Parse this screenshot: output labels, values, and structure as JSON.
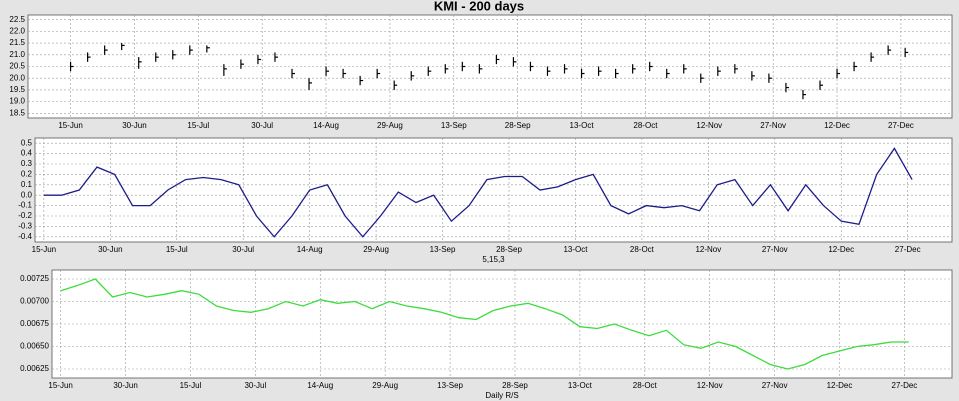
{
  "title": "KMI - 200 days",
  "chart_data": [
    {
      "type": "ohlc",
      "x": [
        0,
        4,
        8,
        12,
        16,
        20,
        24,
        28,
        32,
        36,
        40,
        44,
        48,
        52,
        56,
        60,
        64,
        68,
        72,
        76,
        80,
        84,
        88,
        92,
        96,
        100,
        104,
        108,
        112,
        116,
        120,
        124,
        128,
        132,
        136,
        140,
        144,
        148,
        152,
        156,
        160,
        164,
        168,
        172,
        176,
        180,
        184,
        188,
        192,
        196
      ],
      "high": [
        20.7,
        21.1,
        21.4,
        21.5,
        20.9,
        21.1,
        21.2,
        21.4,
        21.4,
        20.6,
        20.8,
        21.0,
        21.1,
        20.4,
        20.0,
        20.5,
        20.4,
        20.1,
        20.4,
        19.9,
        20.3,
        20.5,
        20.6,
        20.7,
        20.6,
        21.0,
        20.9,
        20.7,
        20.5,
        20.6,
        20.4,
        20.5,
        20.4,
        20.6,
        20.7,
        20.4,
        20.6,
        20.2,
        20.5,
        20.6,
        20.3,
        20.2,
        19.8,
        19.5,
        19.9,
        20.4,
        20.7,
        21.1,
        21.4,
        21.3
      ],
      "low": [
        20.3,
        20.7,
        21.0,
        21.2,
        20.4,
        20.7,
        20.8,
        21.0,
        21.1,
        20.1,
        20.4,
        20.6,
        20.7,
        20.0,
        19.5,
        20.1,
        20.0,
        19.7,
        20.0,
        19.5,
        19.9,
        20.1,
        20.2,
        20.3,
        20.2,
        20.6,
        20.5,
        20.3,
        20.1,
        20.2,
        20.0,
        20.1,
        20.0,
        20.2,
        20.3,
        20.0,
        20.2,
        19.8,
        20.1,
        20.2,
        19.9,
        19.8,
        19.4,
        19.1,
        19.5,
        20.0,
        20.3,
        20.7,
        21.0,
        20.9
      ],
      "close": [
        20.5,
        20.9,
        21.2,
        21.4,
        20.7,
        20.9,
        21.0,
        21.2,
        21.3,
        20.4,
        20.6,
        20.8,
        20.9,
        20.2,
        19.8,
        20.3,
        20.2,
        19.9,
        20.2,
        19.7,
        20.1,
        20.3,
        20.4,
        20.5,
        20.4,
        20.8,
        20.7,
        20.5,
        20.3,
        20.4,
        20.2,
        20.3,
        20.2,
        20.4,
        20.5,
        20.2,
        20.4,
        20.0,
        20.3,
        20.4,
        20.1,
        20.0,
        19.6,
        19.3,
        19.7,
        20.2,
        20.5,
        20.9,
        21.2,
        21.1
      ],
      "color": "#000000",
      "xlim": [
        -10,
        207
      ],
      "xticks": [
        {
          "value": 0,
          "label": "15-Jun"
        },
        {
          "value": 15,
          "label": "30-Jun"
        },
        {
          "value": 30,
          "label": "15-Jul"
        },
        {
          "value": 45,
          "label": "30-Jul"
        },
        {
          "value": 60,
          "label": "14-Aug"
        },
        {
          "value": 75,
          "label": "29-Aug"
        },
        {
          "value": 90,
          "label": "13-Sep"
        },
        {
          "value": 105,
          "label": "28-Sep"
        },
        {
          "value": 120,
          "label": "13-Oct"
        },
        {
          "value": 135,
          "label": "28-Oct"
        },
        {
          "value": 150,
          "label": "12-Nov"
        },
        {
          "value": 165,
          "label": "27-Nov"
        },
        {
          "value": 180,
          "label": "12-Dec"
        },
        {
          "value": 195,
          "label": "27-Dec"
        }
      ],
      "ylim": [
        18.3,
        22.7
      ],
      "yticks": [
        18.5,
        {
          "value": 19,
          "label": "19.0"
        },
        19.5,
        {
          "value": 20,
          "label": "20.0"
        },
        20.5,
        {
          "value": 21,
          "label": "21.0"
        },
        21.5,
        {
          "value": 22,
          "label": "22.0"
        },
        22.5
      ],
      "grid": true
    },
    {
      "type": "line",
      "xlabel": "5,15,3",
      "x": [
        0,
        4,
        8,
        12,
        16,
        20,
        24,
        28,
        32,
        36,
        40,
        44,
        48,
        52,
        56,
        60,
        64,
        68,
        72,
        76,
        80,
        84,
        88,
        92,
        96,
        100,
        104,
        108,
        112,
        116,
        120,
        124,
        128,
        132,
        136,
        140,
        144,
        148,
        152,
        156,
        160,
        164,
        168,
        172,
        176,
        180,
        184,
        188,
        192,
        196
      ],
      "values": [
        0.0,
        0.0,
        0.05,
        0.27,
        0.2,
        -0.1,
        -0.1,
        0.05,
        0.15,
        0.17,
        0.15,
        0.1,
        -0.2,
        -0.4,
        -0.2,
        0.05,
        0.1,
        -0.2,
        -0.4,
        -0.2,
        0.03,
        -0.07,
        0.0,
        -0.25,
        -0.1,
        0.15,
        0.18,
        0.18,
        0.05,
        0.08,
        0.15,
        0.2,
        -0.1,
        -0.18,
        -0.1,
        -0.12,
        -0.1,
        -0.15,
        0.1,
        0.15,
        -0.1,
        0.1,
        -0.15,
        0.1,
        -0.1,
        -0.25,
        -0.28,
        0.2,
        0.45,
        0.15
      ],
      "color": "#1c1c8a",
      "xlim": [
        -2,
        205
      ],
      "xticks": [
        {
          "value": 0,
          "label": "15-Jun"
        },
        {
          "value": 15,
          "label": "30-Jun"
        },
        {
          "value": 30,
          "label": "15-Jul"
        },
        {
          "value": 45,
          "label": "30-Jul"
        },
        {
          "value": 60,
          "label": "14-Aug"
        },
        {
          "value": 75,
          "label": "29-Aug"
        },
        {
          "value": 90,
          "label": "13-Sep"
        },
        {
          "value": 105,
          "label": "28-Sep"
        },
        {
          "value": 120,
          "label": "13-Oct"
        },
        {
          "value": 135,
          "label": "28-Oct"
        },
        {
          "value": 150,
          "label": "12-Nov"
        },
        {
          "value": 165,
          "label": "27-Nov"
        },
        {
          "value": 180,
          "label": "12-Dec"
        },
        {
          "value": 195,
          "label": "27-Dec"
        }
      ],
      "ylim": [
        -0.45,
        0.55
      ],
      "yticks": [
        -0.4,
        -0.3,
        -0.2,
        -0.1,
        {
          "value": 0,
          "label": "0.0"
        },
        0.1,
        0.2,
        0.3,
        0.4,
        0.5
      ],
      "grid": true
    },
    {
      "type": "line",
      "xlabel": "Daily R/S",
      "x": [
        0,
        4,
        8,
        12,
        16,
        20,
        24,
        28,
        32,
        36,
        40,
        44,
        48,
        52,
        56,
        60,
        64,
        68,
        72,
        76,
        80,
        84,
        88,
        92,
        96,
        100,
        104,
        108,
        112,
        116,
        120,
        124,
        128,
        132,
        136,
        140,
        144,
        148,
        152,
        156,
        160,
        164,
        168,
        172,
        176,
        180,
        184,
        188,
        192,
        196
      ],
      "values": [
        0.00712,
        0.00718,
        0.00725,
        0.00705,
        0.0071,
        0.00705,
        0.00708,
        0.00712,
        0.00708,
        0.00695,
        0.0069,
        0.00688,
        0.00692,
        0.007,
        0.00695,
        0.00702,
        0.00698,
        0.007,
        0.00692,
        0.007,
        0.00695,
        0.00692,
        0.00688,
        0.00682,
        0.0068,
        0.0069,
        0.00695,
        0.00698,
        0.00692,
        0.00685,
        0.00672,
        0.0067,
        0.00675,
        0.00668,
        0.00662,
        0.00668,
        0.00652,
        0.00648,
        0.00655,
        0.0065,
        0.0064,
        0.0063,
        0.00625,
        0.0063,
        0.0064,
        0.00645,
        0.0065,
        0.00652,
        0.00655,
        0.00655
      ],
      "color": "#3ddc3d",
      "xlim": [
        -2,
        206
      ],
      "xticks": [
        {
          "value": 0,
          "label": "15-Jun"
        },
        {
          "value": 15,
          "label": "30-Jun"
        },
        {
          "value": 30,
          "label": "15-Jul"
        },
        {
          "value": 45,
          "label": "30-Jul"
        },
        {
          "value": 60,
          "label": "14-Aug"
        },
        {
          "value": 75,
          "label": "29-Aug"
        },
        {
          "value": 90,
          "label": "13-Sep"
        },
        {
          "value": 105,
          "label": "28-Sep"
        },
        {
          "value": 120,
          "label": "13-Oct"
        },
        {
          "value": 135,
          "label": "28-Oct"
        },
        {
          "value": 150,
          "label": "12-Nov"
        },
        {
          "value": 165,
          "label": "27-Nov"
        },
        {
          "value": 180,
          "label": "12-Dec"
        },
        {
          "value": 195,
          "label": "27-Dec"
        }
      ],
      "ylim": [
        0.00615,
        0.00735
      ],
      "yticks": [
        0.00625,
        {
          "value": 0.0065,
          "label": "0.00650"
        },
        0.00675,
        {
          "value": 0.007,
          "label": "0.00700"
        },
        0.00725
      ],
      "grid": true
    }
  ]
}
